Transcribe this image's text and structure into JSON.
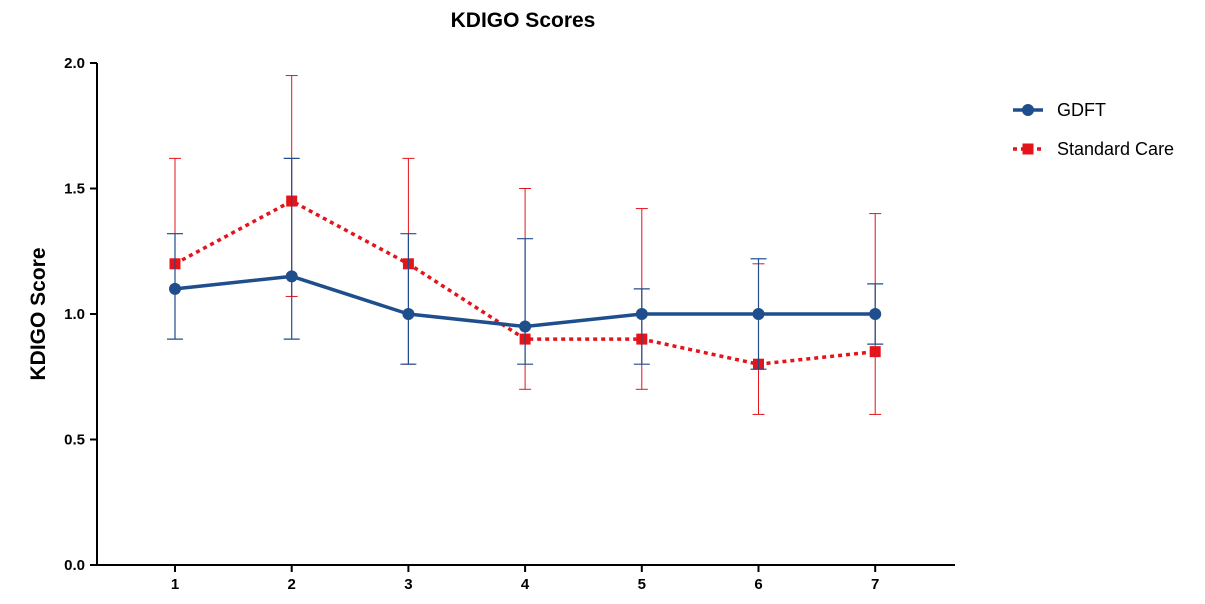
{
  "chart_data": {
    "type": "line",
    "title": "KDIGO Scores",
    "xlabel": "",
    "ylabel": "KDIGO Score",
    "categories": [
      "1",
      "2",
      "3",
      "4",
      "5",
      "6",
      "7"
    ],
    "ylim": [
      0,
      2
    ],
    "yticks": [
      "0.0",
      "0.5",
      "1.0",
      "1.5",
      "2.0"
    ],
    "grid": false,
    "legend_position": "top-right",
    "series": [
      {
        "name": "GDFT",
        "color": "#1f4e8c",
        "line_style": "solid",
        "marker": "circle",
        "values": [
          1.1,
          1.15,
          1.0,
          0.95,
          1.0,
          1.0,
          1.0
        ],
        "error_low": [
          0.9,
          0.9,
          0.8,
          0.8,
          0.8,
          0.78,
          0.88
        ],
        "error_high": [
          1.32,
          1.62,
          1.32,
          1.3,
          1.1,
          1.22,
          1.12
        ]
      },
      {
        "name": "Standard Care",
        "color": "#e3141a",
        "line_style": "dotted",
        "marker": "square",
        "values": [
          1.2,
          1.45,
          1.2,
          0.9,
          0.9,
          0.8,
          0.85
        ],
        "error_low": [
          0.9,
          1.07,
          0.8,
          0.7,
          0.7,
          0.6,
          0.6
        ],
        "error_high": [
          1.62,
          1.95,
          1.62,
          1.5,
          1.42,
          1.2,
          1.4
        ]
      }
    ]
  }
}
